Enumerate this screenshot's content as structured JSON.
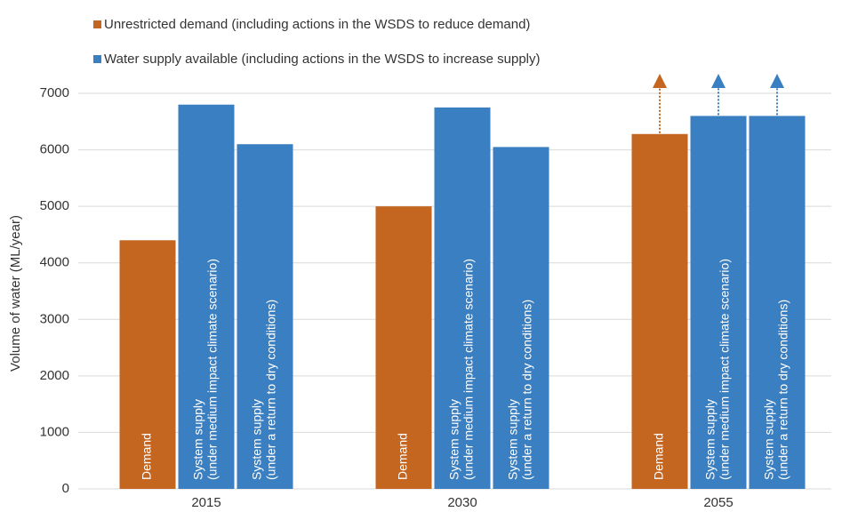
{
  "chart_data": {
    "type": "bar",
    "legend": [
      {
        "name": "Unrestricted demand (including actions in the WSDS to reduce demand)",
        "color": "#c4661f"
      },
      {
        "name": "Water supply available (including actions in the WSDS to increase supply)",
        "color": "#3a7fc1"
      }
    ],
    "y_label": "Volume of water (ML/year)",
    "categories": [
      "2015",
      "2030",
      "2055"
    ],
    "series": [
      {
        "label": [
          "Demand"
        ],
        "color": "#c4661f",
        "values": [
          4400,
          5000,
          6280
        ],
        "arrows": [
          false,
          false,
          true
        ]
      },
      {
        "label": [
          "System supply",
          "(under medium impact climate scenario)"
        ],
        "color": "#3a7fc1",
        "values": [
          6800,
          6750,
          6600
        ],
        "arrows": [
          false,
          false,
          true
        ]
      },
      {
        "label": [
          "System supply",
          "(under a return to dry conditions)"
        ],
        "color": "#3a7fc1",
        "values": [
          6100,
          6050,
          6600
        ],
        "arrows": [
          false,
          false,
          true
        ]
      }
    ],
    "ylim": [
      0,
      7000
    ],
    "yticks": [
      0,
      1000,
      2000,
      3000,
      4000,
      5000,
      6000,
      7000
    ],
    "grid": true
  }
}
